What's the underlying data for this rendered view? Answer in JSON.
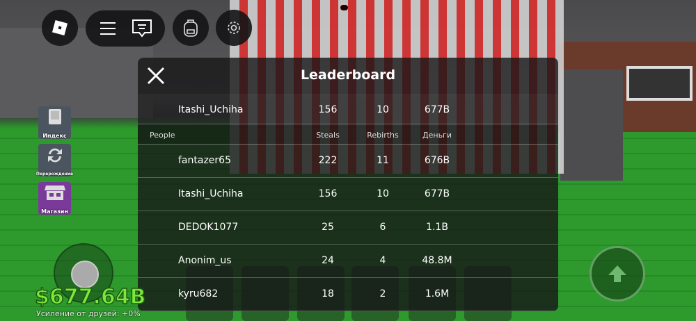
{
  "topbar": {
    "icons": [
      "roblox-logo-icon",
      "menu-icon",
      "chat-icon",
      "backpack-icon",
      "gear-icon"
    ]
  },
  "side_buttons": [
    {
      "label": "Индекс",
      "icon": "book-icon",
      "color": "#4a5560"
    },
    {
      "label": "Перерождение",
      "icon": "refresh-icon",
      "color": "#4a5560"
    },
    {
      "label": "Магазин",
      "icon": "shop-icon",
      "color": "#7a3a9a"
    }
  ],
  "leaderboard": {
    "title": "Leaderboard",
    "pinned": {
      "name": "Itashi_Uchiha",
      "steals": "156",
      "rebirths": "10",
      "money": "677B"
    },
    "columns": {
      "people": "People",
      "steals": "Steals",
      "rebirths": "Rebirths",
      "money": "Деньги"
    },
    "rows": [
      {
        "name": "fantazer65",
        "steals": "222",
        "rebirths": "11",
        "money": "676B"
      },
      {
        "name": "Itashi_Uchiha",
        "steals": "156",
        "rebirths": "10",
        "money": "677B"
      },
      {
        "name": "DEDOK1077",
        "steals": "25",
        "rebirths": "6",
        "money": "1.1B"
      },
      {
        "name": "Anonim_us",
        "steals": "24",
        "rebirths": "4",
        "money": "48.8M"
      },
      {
        "name": "kyru682",
        "steals": "18",
        "rebirths": "2",
        "money": "1.6M"
      }
    ]
  },
  "hud": {
    "money": "$677.64B",
    "boost": "Усиление от друзей: +0%",
    "money_color": "#7de83a"
  }
}
